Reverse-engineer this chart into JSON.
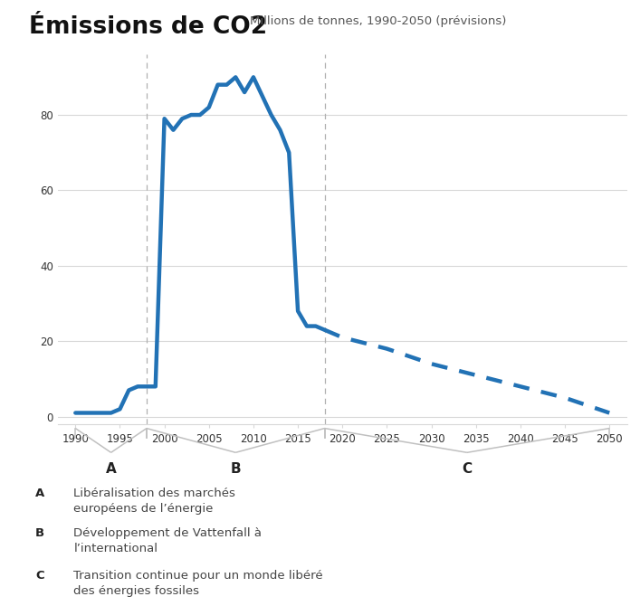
{
  "title_bold": "Émissions de CO2",
  "title_light": "Millions de tonnes, 1990-2050 (prévisions)",
  "line_color": "#2272b5",
  "background_color": "#ffffff",
  "grid_color": "#d8d8d8",
  "dashed_vline_color": "#b0b0b0",
  "solid_x": [
    1990,
    1991,
    1992,
    1993,
    1994,
    1995,
    1996,
    1997,
    1998,
    1999,
    2000,
    2001,
    2002,
    2003,
    2004,
    2005,
    2006,
    2007,
    2008,
    2009,
    2010,
    2011,
    2012,
    2013,
    2014,
    2015,
    2016,
    2017,
    2018
  ],
  "solid_y": [
    1,
    1,
    1,
    1,
    1,
    2,
    7,
    8,
    8,
    8,
    79,
    76,
    79,
    80,
    80,
    82,
    88,
    88,
    90,
    86,
    90,
    85,
    80,
    76,
    70,
    28,
    24,
    24,
    23
  ],
  "dotted_x": [
    2018,
    2019,
    2020,
    2025,
    2030,
    2035,
    2040,
    2045,
    2050
  ],
  "dotted_y": [
    23,
    22,
    21,
    18,
    14,
    11,
    8,
    5,
    1
  ],
  "vlines": [
    1998,
    2018
  ],
  "yticks": [
    0,
    20,
    40,
    60,
    80
  ],
  "xticks": [
    1990,
    1995,
    2000,
    2005,
    2010,
    2015,
    2020,
    2025,
    2030,
    2035,
    2040,
    2045,
    2050
  ],
  "section_labels": [
    "A",
    "B",
    "C"
  ],
  "section_descriptions": [
    [
      "A",
      "Libéralisation des marchés\neuropéens de l’énergie"
    ],
    [
      "B",
      "Développement de Vattenfall à\nl’international"
    ],
    [
      "C",
      "Transition continue pour un monde libéré\ndes énergies fossiles"
    ]
  ],
  "line_width": 3.2,
  "bracket_ranges": [
    [
      1990,
      1998
    ],
    [
      1998,
      2018
    ],
    [
      2018,
      2050
    ]
  ],
  "xlim": [
    1988,
    2052
  ],
  "ylim": [
    -2,
    96
  ]
}
